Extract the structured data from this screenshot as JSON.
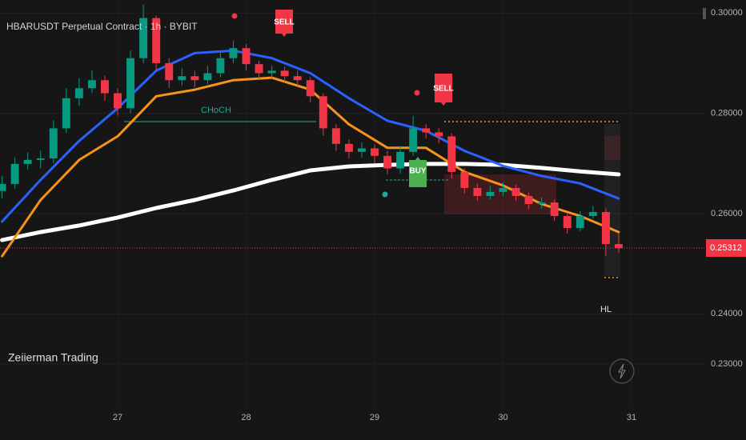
{
  "chart_data": {
    "type": "candlestick",
    "title": "HBARUSDT Perpetual Contract · 1h · BYBIT",
    "watermark": "Zeiierman Trading",
    "xlim": [
      26.084,
      31.567
    ],
    "ylim": [
      0.2212,
      0.3026
    ],
    "xticks": [
      27,
      28,
      29,
      30,
      31
    ],
    "yticks": [
      {
        "value": 0.23,
        "label": "0.23000"
      },
      {
        "value": 0.24,
        "label": "0.24000"
      },
      {
        "value": 0.26,
        "label": "0.26000"
      },
      {
        "value": 0.28,
        "label": "0.28000"
      },
      {
        "value": 0.3,
        "label": "0.30000"
      }
    ],
    "grid": true,
    "up_color": "#089981",
    "down_color": "#f23645",
    "x": [
      26.1,
      26.2,
      26.3,
      26.4,
      26.5,
      26.6,
      26.7,
      26.8,
      26.9,
      27.0,
      27.1,
      27.2,
      27.3,
      27.4,
      27.5,
      27.6,
      27.7,
      27.8,
      27.9,
      28.0,
      28.1,
      28.2,
      28.3,
      28.4,
      28.5,
      28.6,
      28.7,
      28.8,
      28.9,
      29.0,
      29.1,
      29.2,
      29.3,
      29.4,
      29.5,
      29.6,
      29.7,
      29.8,
      29.9,
      30.0,
      30.1,
      30.2,
      30.3,
      30.4,
      30.5,
      30.6,
      30.7,
      30.8,
      30.9
    ],
    "open": [
      0.2645,
      0.2659,
      0.2699,
      0.2707,
      0.271,
      0.277,
      0.283,
      0.285,
      0.2866,
      0.284,
      0.281,
      0.291,
      0.299,
      0.29,
      0.2866,
      0.2874,
      0.2866,
      0.288,
      0.291,
      0.293,
      0.2898,
      0.288,
      0.2885,
      0.2874,
      0.2866,
      0.2834,
      0.277,
      0.2739,
      0.2723,
      0.273,
      0.2715,
      0.269,
      0.2723,
      0.277,
      0.2762,
      0.2754,
      0.2683,
      0.2651,
      0.2635,
      0.2643,
      0.2651,
      0.2635,
      0.2619,
      0.2622,
      0.2595,
      0.2571,
      0.2595,
      0.2603,
      0.2539
    ],
    "high": [
      0.2675,
      0.2712,
      0.2722,
      0.2725,
      0.2785,
      0.285,
      0.287,
      0.2885,
      0.2875,
      0.285,
      0.2925,
      0.3017,
      0.2995,
      0.291,
      0.289,
      0.2885,
      0.2895,
      0.2925,
      0.2945,
      0.2938,
      0.2905,
      0.2895,
      0.2893,
      0.2885,
      0.2872,
      0.284,
      0.2778,
      0.2748,
      0.2742,
      0.2738,
      0.2725,
      0.2735,
      0.2795,
      0.2778,
      0.277,
      0.276,
      0.269,
      0.266,
      0.2655,
      0.2662,
      0.2658,
      0.2642,
      0.2632,
      0.2628,
      0.2602,
      0.2605,
      0.2615,
      0.261,
      0.256
    ],
    "low": [
      0.263,
      0.265,
      0.2688,
      0.269,
      0.27,
      0.276,
      0.2815,
      0.284,
      0.2825,
      0.2795,
      0.28,
      0.29,
      0.2885,
      0.285,
      0.2855,
      0.2852,
      0.2858,
      0.2872,
      0.29,
      0.2885,
      0.2868,
      0.287,
      0.2862,
      0.2855,
      0.2822,
      0.2755,
      0.2725,
      0.271,
      0.2712,
      0.27,
      0.2678,
      0.268,
      0.2715,
      0.275,
      0.274,
      0.267,
      0.264,
      0.2625,
      0.2628,
      0.2635,
      0.2625,
      0.2608,
      0.261,
      0.2585,
      0.256,
      0.2565,
      0.259,
      0.2515,
      0.2522
    ],
    "close": [
      0.2659,
      0.2699,
      0.2707,
      0.271,
      0.277,
      0.283,
      0.285,
      0.2866,
      0.284,
      0.281,
      0.291,
      0.299,
      0.29,
      0.2866,
      0.2874,
      0.2866,
      0.288,
      0.291,
      0.293,
      0.2898,
      0.288,
      0.2885,
      0.2874,
      0.2866,
      0.2834,
      0.277,
      0.2739,
      0.2723,
      0.273,
      0.2715,
      0.269,
      0.2723,
      0.277,
      0.2762,
      0.2754,
      0.2683,
      0.2651,
      0.2635,
      0.2643,
      0.2651,
      0.2635,
      0.2619,
      0.2622,
      0.2595,
      0.2571,
      0.2595,
      0.2603,
      0.2539,
      0.2531
    ],
    "lines": [
      {
        "color": "#ffffff",
        "x": [
          26.1,
          26.4,
          26.7,
          27.0,
          27.3,
          27.6,
          27.9,
          28.2,
          28.5,
          28.8,
          29.1,
          29.4,
          29.7,
          30.0,
          30.3,
          30.6,
          30.9
        ],
        "values": [
          0.2547,
          0.2563,
          0.2576,
          0.2592,
          0.2611,
          0.2627,
          0.2646,
          0.2667,
          0.2686,
          0.2694,
          0.2697,
          0.2699,
          0.2699,
          0.2697,
          0.2691,
          0.2684,
          0.2678
        ]
      },
      {
        "color": "#f7931a",
        "x": [
          26.1,
          26.4,
          26.7,
          27.0,
          27.3,
          27.6,
          27.9,
          28.2,
          28.5,
          28.8,
          29.1,
          29.4,
          29.7,
          30.0,
          30.3,
          30.6,
          30.9
        ],
        "values": [
          0.2515,
          0.2627,
          0.2707,
          0.2754,
          0.2834,
          0.2847,
          0.2866,
          0.2871,
          0.2847,
          0.2778,
          0.2731,
          0.2731,
          0.2683,
          0.2656,
          0.2619,
          0.2595,
          0.2563
        ]
      },
      {
        "color": "#2962ff",
        "x": [
          26.1,
          26.4,
          26.7,
          27.0,
          27.3,
          27.6,
          27.9,
          28.2,
          28.5,
          28.8,
          29.1,
          29.4,
          29.7,
          30.0,
          30.3,
          30.6,
          30.9
        ],
        "values": [
          0.2584,
          0.2667,
          0.2745,
          0.281,
          0.2885,
          0.292,
          0.2925,
          0.291,
          0.288,
          0.283,
          0.2785,
          0.2765,
          0.2725,
          0.2695,
          0.2675,
          0.266,
          0.263
        ]
      }
    ],
    "last_price": 0.25312,
    "signals": [
      "SELL",
      "SELL",
      "BUY"
    ],
    "labels": [
      "CHoCH",
      "HL"
    ]
  }
}
